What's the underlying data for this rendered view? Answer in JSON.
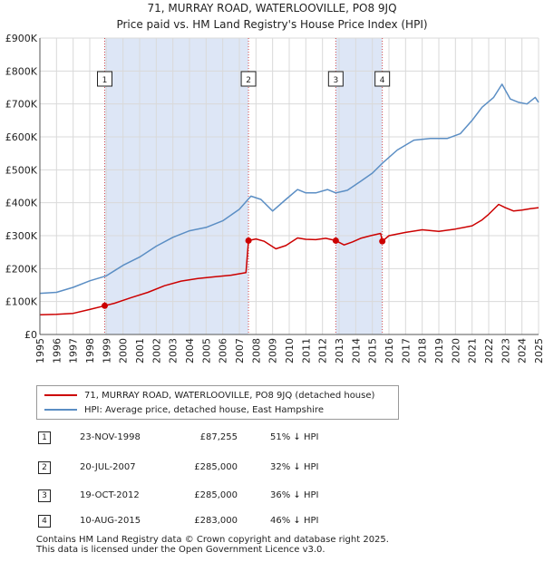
{
  "title_line1": "71, MURRAY ROAD, WATERLOOVILLE, PO8 9JQ",
  "title_line2": "Price paid vs. HM Land Registry's House Price Index (HPI)",
  "colors": {
    "property": "#cc0000",
    "hpi": "#5b8ec4",
    "shade": "#dde6f6",
    "grid": "#d9d9d9"
  },
  "chart_data": {
    "type": "line",
    "xlim": [
      1995,
      2025
    ],
    "ylim": [
      0,
      900000
    ],
    "x_ticks": [
      "1995",
      "1996",
      "1997",
      "1998",
      "1999",
      "2000",
      "2001",
      "2002",
      "2003",
      "2004",
      "2005",
      "2006",
      "2007",
      "2008",
      "2009",
      "2010",
      "2011",
      "2012",
      "2013",
      "2014",
      "2015",
      "2016",
      "2017",
      "2018",
      "2019",
      "2020",
      "2021",
      "2022",
      "2023",
      "2024",
      "2025"
    ],
    "y_ticks": [
      {
        "value": 0,
        "label": "£0"
      },
      {
        "value": 100000,
        "label": "£100K"
      },
      {
        "value": 200000,
        "label": "£200K"
      },
      {
        "value": 300000,
        "label": "£300K"
      },
      {
        "value": 400000,
        "label": "£400K"
      },
      {
        "value": 500000,
        "label": "£500K"
      },
      {
        "value": 600000,
        "label": "£600K"
      },
      {
        "value": 700000,
        "label": "£700K"
      },
      {
        "value": 800000,
        "label": "£800K"
      },
      {
        "value": 900000,
        "label": "£900K"
      }
    ],
    "series": [
      {
        "name": "71, MURRAY ROAD, WATERLOOVILLE, PO8 9JQ (detached house)",
        "color": "#cc0000",
        "points": [
          [
            1995.0,
            60000
          ],
          [
            1996.0,
            61000
          ],
          [
            1997.0,
            64000
          ],
          [
            1998.0,
            76000
          ],
          [
            1998.9,
            87255
          ],
          [
            1999.5,
            95000
          ],
          [
            2000.5,
            112000
          ],
          [
            2001.5,
            128000
          ],
          [
            2002.5,
            148000
          ],
          [
            2003.5,
            162000
          ],
          [
            2004.5,
            170000
          ],
          [
            2005.5,
            175000
          ],
          [
            2006.5,
            180000
          ],
          [
            2007.4,
            188000
          ],
          [
            2007.55,
            285000
          ],
          [
            2008.0,
            290000
          ],
          [
            2008.5,
            283000
          ],
          [
            2009.2,
            260000
          ],
          [
            2009.8,
            270000
          ],
          [
            2010.5,
            293000
          ],
          [
            2011.0,
            289000
          ],
          [
            2011.6,
            288000
          ],
          [
            2012.2,
            292000
          ],
          [
            2012.8,
            285000
          ],
          [
            2013.3,
            272000
          ],
          [
            2013.8,
            281000
          ],
          [
            2014.3,
            292000
          ],
          [
            2014.9,
            300000
          ],
          [
            2015.5,
            307000
          ],
          [
            2015.6,
            283000
          ],
          [
            2016.0,
            300000
          ],
          [
            2017.0,
            310000
          ],
          [
            2018.0,
            318000
          ],
          [
            2019.0,
            313000
          ],
          [
            2020.0,
            320000
          ],
          [
            2021.0,
            330000
          ],
          [
            2021.6,
            348000
          ],
          [
            2022.0,
            365000
          ],
          [
            2022.6,
            395000
          ],
          [
            2023.0,
            385000
          ],
          [
            2023.5,
            375000
          ],
          [
            2024.0,
            378000
          ],
          [
            2024.5,
            382000
          ],
          [
            2025.0,
            385000
          ]
        ]
      },
      {
        "name": "HPI: Average price, detached house, East Hampshire",
        "color": "#5b8ec4",
        "points": [
          [
            1995.0,
            125000
          ],
          [
            1996.0,
            128000
          ],
          [
            1997.0,
            143000
          ],
          [
            1998.0,
            163000
          ],
          [
            1999.0,
            178000
          ],
          [
            2000.0,
            210000
          ],
          [
            2001.0,
            235000
          ],
          [
            2002.0,
            268000
          ],
          [
            2003.0,
            295000
          ],
          [
            2004.0,
            315000
          ],
          [
            2005.0,
            325000
          ],
          [
            2006.0,
            345000
          ],
          [
            2007.0,
            380000
          ],
          [
            2007.7,
            420000
          ],
          [
            2008.3,
            410000
          ],
          [
            2009.0,
            375000
          ],
          [
            2009.8,
            410000
          ],
          [
            2010.5,
            440000
          ],
          [
            2011.0,
            430000
          ],
          [
            2011.6,
            430000
          ],
          [
            2012.3,
            440000
          ],
          [
            2012.8,
            430000
          ],
          [
            2013.5,
            438000
          ],
          [
            2014.3,
            465000
          ],
          [
            2015.0,
            490000
          ],
          [
            2015.6,
            520000
          ],
          [
            2016.5,
            560000
          ],
          [
            2017.5,
            590000
          ],
          [
            2018.5,
            595000
          ],
          [
            2019.5,
            595000
          ],
          [
            2020.3,
            610000
          ],
          [
            2021.0,
            650000
          ],
          [
            2021.6,
            690000
          ],
          [
            2022.3,
            720000
          ],
          [
            2022.8,
            760000
          ],
          [
            2023.3,
            715000
          ],
          [
            2023.8,
            705000
          ],
          [
            2024.3,
            700000
          ],
          [
            2024.8,
            720000
          ],
          [
            2025.0,
            705000
          ]
        ]
      }
    ],
    "sales": [
      {
        "n": "1",
        "x": 1998.9,
        "y": 87255
      },
      {
        "n": "2",
        "x": 2007.55,
        "y": 285000
      },
      {
        "n": "3",
        "x": 2012.8,
        "y": 285000
      },
      {
        "n": "4",
        "x": 2015.6,
        "y": 283000
      }
    ],
    "shaded_ranges": [
      [
        1998.9,
        2007.55
      ],
      [
        2012.8,
        2015.6
      ]
    ]
  },
  "legend": {
    "property": "71, MURRAY ROAD, WATERLOOVILLE, PO8 9JQ (detached house)",
    "hpi": "HPI: Average price, detached house, East Hampshire"
  },
  "sales_table": [
    {
      "n": "1",
      "date": "23-NOV-1998",
      "price": "£87,255",
      "hpi": "51% ↓ HPI"
    },
    {
      "n": "2",
      "date": "20-JUL-2007",
      "price": "£285,000",
      "hpi": "32% ↓ HPI"
    },
    {
      "n": "3",
      "date": "19-OCT-2012",
      "price": "£285,000",
      "hpi": "36% ↓ HPI"
    },
    {
      "n": "4",
      "date": "10-AUG-2015",
      "price": "£283,000",
      "hpi": "46% ↓ HPI"
    }
  ],
  "footer": {
    "line1": "Contains HM Land Registry data © Crown copyright and database right 2025.",
    "line2": "This data is licensed under the Open Government Licence v3.0."
  }
}
